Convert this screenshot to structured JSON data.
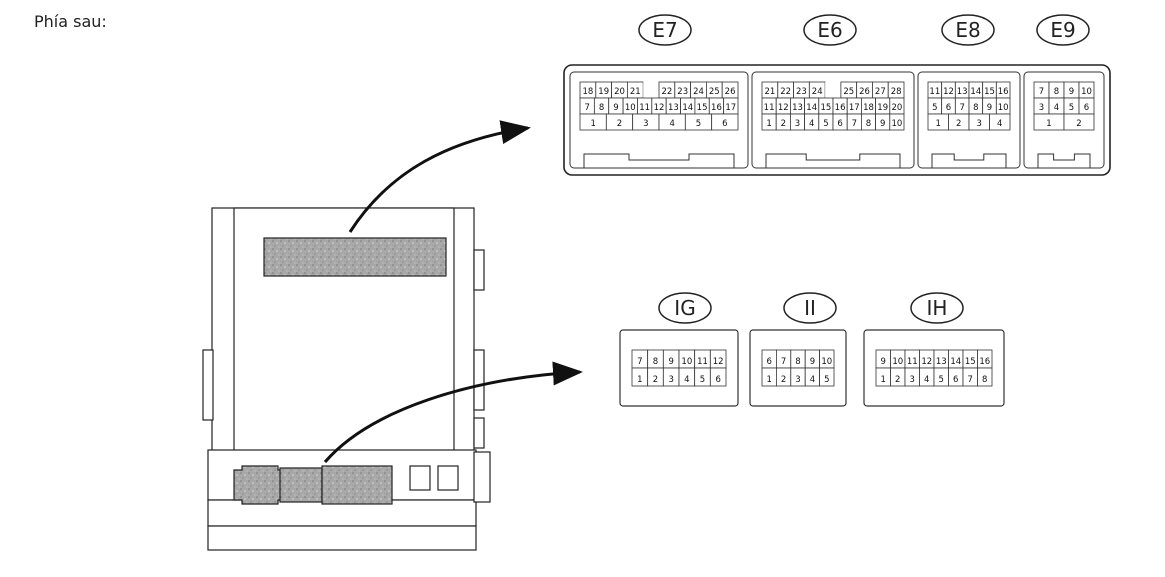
{
  "title": "Phía sau:",
  "upper_connectors": [
    {
      "id": "E7",
      "rows": [
        [
          "18",
          "19",
          "20",
          "21",
          "",
          "22",
          "23",
          "24",
          "25",
          "26"
        ],
        [
          "7",
          "8",
          "9",
          "10",
          "11",
          "12",
          "13",
          "14",
          "15",
          "16",
          "17"
        ],
        [
          "1",
          "2",
          "3",
          "4",
          "5",
          "6"
        ]
      ]
    },
    {
      "id": "E6",
      "rows": [
        [
          "21",
          "22",
          "23",
          "24",
          "",
          "25",
          "26",
          "27",
          "28"
        ],
        [
          "11",
          "12",
          "13",
          "14",
          "15",
          "16",
          "17",
          "18",
          "19",
          "20"
        ],
        [
          "1",
          "2",
          "3",
          "4",
          "5",
          "6",
          "7",
          "8",
          "9",
          "10"
        ]
      ]
    },
    {
      "id": "E8",
      "rows": [
        [
          "11",
          "12",
          "13",
          "14",
          "15",
          "16"
        ],
        [
          "5",
          "6",
          "7",
          "8",
          "9",
          "10"
        ],
        [
          "1",
          "2",
          "3",
          "4"
        ]
      ]
    },
    {
      "id": "E9",
      "rows": [
        [
          "7",
          "8",
          "9",
          "10"
        ],
        [
          "3",
          "4",
          "5",
          "6"
        ],
        [
          "1",
          "2"
        ]
      ]
    }
  ],
  "lower_connectors": [
    {
      "id": "IG",
      "rows": [
        [
          "7",
          "8",
          "9",
          "10",
          "11",
          "12"
        ],
        [
          "1",
          "2",
          "3",
          "4",
          "5",
          "6"
        ]
      ]
    },
    {
      "id": "II",
      "rows": [
        [
          "6",
          "7",
          "8",
          "9",
          "10"
        ],
        [
          "1",
          "2",
          "3",
          "4",
          "5"
        ]
      ]
    },
    {
      "id": "IH",
      "rows": [
        [
          "9",
          "10",
          "11",
          "12",
          "13",
          "14",
          "15",
          "16"
        ],
        [
          "1",
          "2",
          "3",
          "4",
          "5",
          "6",
          "7",
          "8"
        ]
      ]
    }
  ]
}
